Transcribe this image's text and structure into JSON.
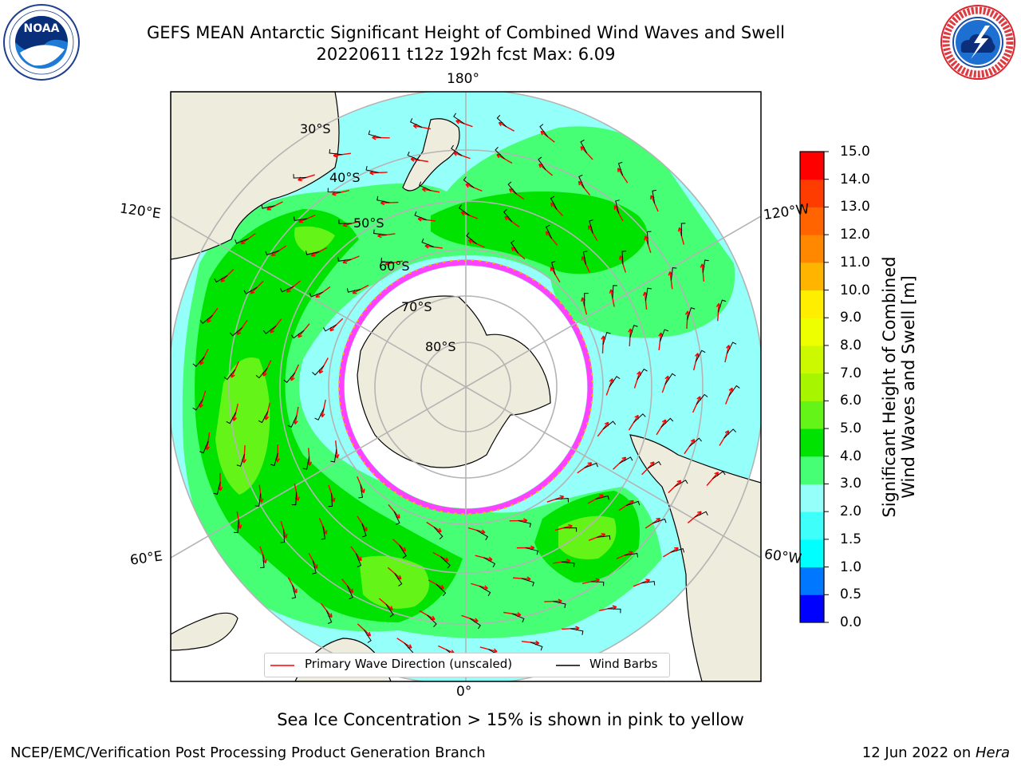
{
  "header": {
    "title_line1": "GEFS MEAN Antarctic Significant Height of Combined Wind Waves and Swell",
    "title_line2": "20220611 t12z 192h fcst   Max: 6.09"
  },
  "logos": {
    "noaa": {
      "text": "NOAA",
      "ring_text": "NATIONAL OCEANIC AND ATMOSPHERIC ADMINISTRATION · U.S. DEPARTMENT OF COMMERCE"
    },
    "nws": {
      "ring_text": "NATIONAL WEATHER SERVICE"
    }
  },
  "map": {
    "projection": "south-polar-stereographic",
    "longitude_labels": {
      "top": "180°",
      "bottom": "0°",
      "upper_left": "120°E",
      "upper_right": "120°W",
      "lower_left": "60°E",
      "lower_right": "60°W"
    },
    "latitude_labels": [
      "30°S",
      "40°S",
      "50°S",
      "60°S",
      "70°S",
      "80°S"
    ],
    "colors": {
      "ocean_low": "#95fffa",
      "ocean_mid": "#46ff75",
      "ocean_high": "#00e300",
      "ocean_peak": "#64f418",
      "land": "#eeecdc",
      "ice": "#ffffff",
      "ice_edge": "#ff40ff",
      "wave_arrow": "#ff0000",
      "wind_barb": "#000000",
      "graticule": "#b4b4b4"
    }
  },
  "colorbar": {
    "label": "Significant Height of Combined\nWind Waves and Swell [m]",
    "ticks": [
      "0.0",
      "0.5",
      "1.0",
      "1.5",
      "2.0",
      "3.0",
      "4.0",
      "5.0",
      "6.0",
      "7.0",
      "8.0",
      "9.0",
      "10.0",
      "11.0",
      "12.0",
      "13.0",
      "14.0",
      "15.0"
    ],
    "colors": [
      "#0000ff",
      "#0077ff",
      "#00ffff",
      "#3ffffa",
      "#95fffa",
      "#46ff75",
      "#00e300",
      "#64f418",
      "#a7f600",
      "#ccf800",
      "#eeff00",
      "#ffee00",
      "#ffb400",
      "#ff8800",
      "#ff6400",
      "#ff3c00",
      "#ff0000"
    ]
  },
  "legend": {
    "items": [
      {
        "label": "Primary Wave Direction (unscaled)",
        "color": "#ff0000"
      },
      {
        "label": "Wind Barbs",
        "color": "#000000"
      }
    ]
  },
  "caption": "Sea Ice Concentration > 15% is shown in pink to yellow",
  "footer": {
    "left": "NCEP/EMC/Verification Post Processing Product Generation Branch",
    "right_date": "12 Jun 2022 on ",
    "right_host": "Hera"
  }
}
